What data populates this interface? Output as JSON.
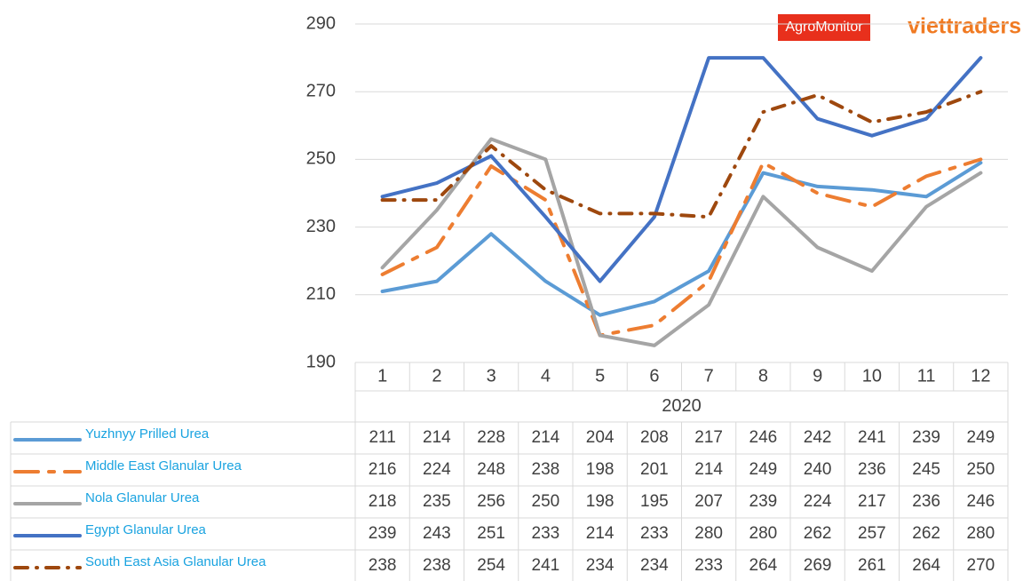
{
  "brand": {
    "left": "AgroMonitor",
    "right": "viettraders"
  },
  "chart_data": {
    "type": "line",
    "categories": [
      "1",
      "2",
      "3",
      "4",
      "5",
      "6",
      "7",
      "8",
      "9",
      "10",
      "11",
      "12"
    ],
    "x_group_label": "2020",
    "ylim": [
      190,
      290
    ],
    "yticks": [
      190,
      210,
      230,
      250,
      270,
      290
    ],
    "grid": true,
    "data_table": true,
    "series": [
      {
        "name": "Yuzhnyy Prilled Urea",
        "color": "#5b9bd5",
        "dash": "solid",
        "values": [
          211,
          214,
          228,
          214,
          204,
          208,
          217,
          246,
          242,
          241,
          239,
          249
        ]
      },
      {
        "name": "Middle East Glanular Urea",
        "color": "#ed7d31",
        "dash": "dashdot",
        "values": [
          216,
          224,
          248,
          238,
          198,
          201,
          214,
          249,
          240,
          236,
          245,
          250
        ]
      },
      {
        "name": "Nola Glanular Urea",
        "color": "#a5a5a5",
        "dash": "solid",
        "values": [
          218,
          235,
          256,
          250,
          198,
          195,
          207,
          239,
          224,
          217,
          236,
          246
        ]
      },
      {
        "name": "Egypt Glanular Urea",
        "color": "#4472c4",
        "dash": "solid",
        "values": [
          239,
          243,
          251,
          233,
          214,
          233,
          280,
          280,
          262,
          257,
          262,
          280
        ]
      },
      {
        "name": "South East Asia Glanular Urea",
        "color": "#9e480e",
        "dash": "rounddot",
        "values": [
          238,
          238,
          254,
          241,
          234,
          234,
          233,
          264,
          269,
          261,
          264,
          270
        ]
      }
    ]
  }
}
